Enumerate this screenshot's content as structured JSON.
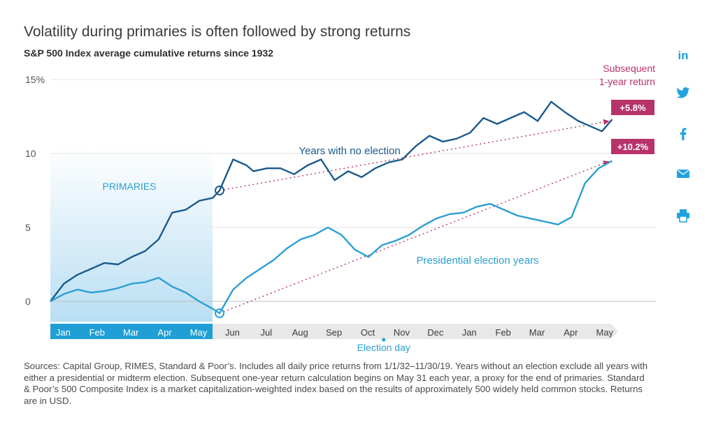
{
  "chart_data": {
    "type": "line",
    "title": "Volatility during primaries is often followed by strong returns",
    "subtitle": "S&P 500 Index average cumulative returns since 1932",
    "ylim": [
      -2,
      15
    ],
    "y_ticks": [
      "15%",
      "10",
      "5",
      "0"
    ],
    "x_ticks": [
      "Jan",
      "Feb",
      "Mar",
      "Apr",
      "May",
      "Jun",
      "Jul",
      "Aug",
      "Sep",
      "Oct",
      "Nov",
      "Dec",
      "Jan",
      "Feb",
      "Mar",
      "Apr",
      "May"
    ],
    "shaded_region_label": "PRIMARIES",
    "event_label": "Election day",
    "annotation_header": "Subsequent\n1-year return",
    "series": [
      {
        "name": "Years with no election",
        "color": "#1a5a8e",
        "x": [
          0,
          0.4,
          0.8,
          1.2,
          1.6,
          2.0,
          2.4,
          2.8,
          3.2,
          3.6,
          4.0,
          4.4,
          4.8,
          5.0,
          5.4,
          5.8,
          6.0,
          6.4,
          6.8,
          7.2,
          7.6,
          8.0,
          8.4,
          8.8,
          9.2,
          9.6,
          10.0,
          10.4,
          10.8,
          11.2,
          11.6,
          12.0,
          12.4,
          12.8,
          13.2,
          13.6,
          14.0,
          14.4,
          14.8,
          15.2,
          15.6,
          16.0,
          16.3,
          16.6
        ],
        "values": [
          0,
          1.2,
          1.8,
          2.2,
          2.6,
          2.5,
          3.0,
          3.4,
          4.2,
          6.0,
          6.2,
          6.8,
          7.0,
          7.5,
          9.6,
          9.2,
          8.8,
          9.0,
          9.0,
          8.6,
          9.2,
          9.6,
          8.2,
          8.8,
          8.4,
          9.0,
          9.4,
          9.6,
          10.5,
          11.2,
          10.8,
          11.0,
          11.4,
          12.4,
          12.0,
          12.4,
          12.8,
          12.2,
          13.5,
          12.8,
          12.2,
          11.8,
          11.5,
          12.3
        ]
      },
      {
        "name": "Presidential election years",
        "color": "#2a9fd4",
        "x": [
          0,
          0.4,
          0.8,
          1.2,
          1.6,
          2.0,
          2.4,
          2.8,
          3.2,
          3.6,
          4.0,
          4.4,
          4.8,
          5.0,
          5.4,
          5.8,
          6.2,
          6.6,
          7.0,
          7.4,
          7.8,
          8.2,
          8.6,
          9.0,
          9.4,
          9.8,
          10.2,
          10.6,
          11.0,
          11.4,
          11.8,
          12.2,
          12.6,
          13.0,
          13.4,
          13.8,
          14.2,
          14.6,
          15.0,
          15.4,
          15.8,
          16.2,
          16.6
        ],
        "values": [
          0,
          0.5,
          0.8,
          0.6,
          0.7,
          0.9,
          1.2,
          1.3,
          1.6,
          1.0,
          0.6,
          0.0,
          -0.5,
          -0.8,
          0.8,
          1.6,
          2.2,
          2.8,
          3.6,
          4.2,
          4.5,
          5.0,
          4.5,
          3.5,
          3.0,
          3.8,
          4.1,
          4.5,
          5.1,
          5.6,
          5.9,
          6.0,
          6.4,
          6.6,
          6.2,
          5.8,
          5.6,
          5.4,
          5.2,
          5.7,
          8.0,
          9.0,
          9.5
        ]
      }
    ],
    "annotations": [
      {
        "label": "+5.8%",
        "series": "Years with no election"
      },
      {
        "label": "+10.2%",
        "series": "Presidential election years"
      }
    ]
  },
  "share_icons": [
    "linkedin-icon",
    "twitter-icon",
    "facebook-icon",
    "mail-icon",
    "print-icon"
  ],
  "source_text": "Sources: Capital Group, RIMES, Standard & Poor’s. Includes all daily price returns from 1/1/32–11/30/19. Years without an election exclude all years with either a presidential or midterm election. Subsequent one-year return calculation begins on May 31 each year, a proxy for the end of primaries. Standard & Poor’s 500 Composite Index is a market capitalization-weighted index based on the results of approximately 500 widely held common stocks. Returns are in USD."
}
